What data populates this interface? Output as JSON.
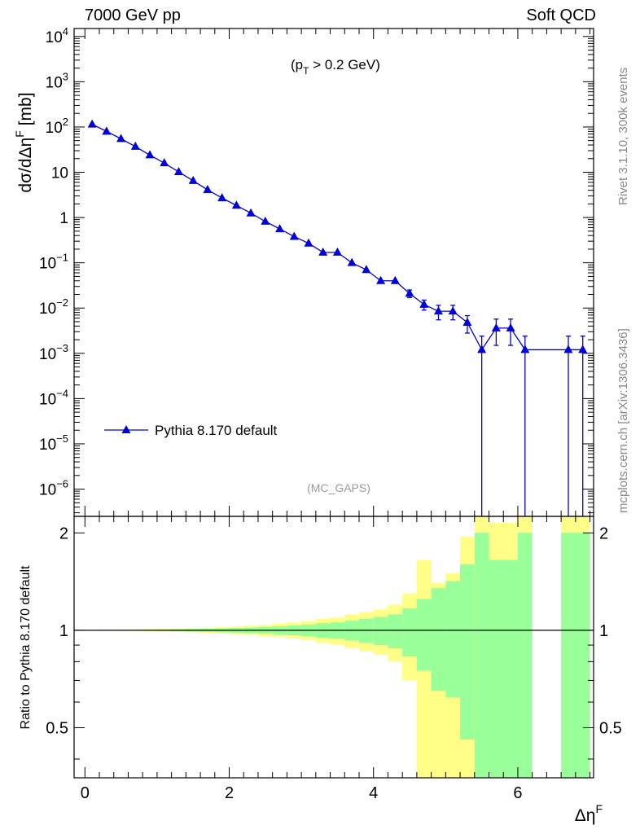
{
  "header": {
    "left": "7000 GeV pp",
    "right": "Soft QCD"
  },
  "side_labels": {
    "top": "Rivet 3.1.10,  300k events",
    "bottom": "mcplots.cern.ch [arXiv:1306.3436]"
  },
  "chart_data": [
    {
      "type": "line",
      "panel": "main",
      "ylabel": "dσ/dΔη^F [mb]",
      "annotation": "(p_T > 0.2 GeV)",
      "analysis_label": "(MC_GAPS)",
      "yscale": "log",
      "ylim": [
        2.5e-07,
        15000
      ],
      "xlim": [
        -0.15,
        7.05
      ],
      "yticks": [
        {
          "v": 10000.0,
          "m": "10",
          "e": "4"
        },
        {
          "v": 1000.0,
          "m": "10",
          "e": "3"
        },
        {
          "v": 100.0,
          "m": "10",
          "e": "2"
        },
        {
          "v": 10,
          "m": "10",
          "e": ""
        },
        {
          "v": 1,
          "m": "1",
          "e": ""
        },
        {
          "v": 0.1,
          "m": "10",
          "e": "−1"
        },
        {
          "v": 0.01,
          "m": "10",
          "e": "−2"
        },
        {
          "v": 0.001,
          "m": "10",
          "e": "−3"
        },
        {
          "v": 0.0001,
          "m": "10",
          "e": "−4"
        },
        {
          "v": 1e-05,
          "m": "10",
          "e": "−5"
        },
        {
          "v": 1e-06,
          "m": "10",
          "e": "−6"
        }
      ],
      "legend": {
        "position": "left-lower",
        "entries": [
          "Pythia 8.170 default"
        ]
      },
      "series": [
        {
          "name": "Pythia 8.170 default",
          "color": "#0000dd",
          "x": [
            0.1,
            0.3,
            0.5,
            0.7,
            0.9,
            1.1,
            1.3,
            1.5,
            1.7,
            1.9,
            2.1,
            2.3,
            2.5,
            2.7,
            2.9,
            3.1,
            3.3,
            3.5,
            3.7,
            3.9,
            4.1,
            4.3,
            4.5,
            4.7,
            4.9,
            5.1,
            5.3,
            5.5,
            5.7,
            5.9,
            6.1,
            6.7,
            6.9
          ],
          "y": [
            115,
            80,
            55,
            37,
            24,
            16,
            10.2,
            6.5,
            4.1,
            2.7,
            1.85,
            1.25,
            0.82,
            0.56,
            0.38,
            0.27,
            0.17,
            0.17,
            0.1,
            0.07,
            0.04,
            0.04,
            0.021,
            0.012,
            0.0085,
            0.0085,
            0.0048,
            0.0012,
            0.0036,
            0.0036,
            0.0012,
            0.0012,
            0.0012
          ],
          "yerr": [
            0,
            0,
            0,
            0,
            0,
            0,
            0,
            0,
            0,
            0,
            0,
            0,
            0,
            0,
            0,
            0,
            0,
            0,
            0,
            0,
            0,
            0,
            0.004,
            0.003,
            0.003,
            0.003,
            0.002,
            0.0012,
            0.0021,
            0.0021,
            0.0012,
            0.0012,
            0.0012
          ]
        }
      ]
    },
    {
      "type": "area",
      "panel": "ratio",
      "ylabel": "Ratio to Pythia 8.170 default",
      "xlabel": "Δη^F",
      "xlim": [
        -0.15,
        7.05
      ],
      "ylim": [
        0.35,
        2.25
      ],
      "yticks": [
        0.5,
        1,
        2
      ],
      "xticks": [
        0,
        2,
        4,
        6
      ],
      "colors": {
        "yellow": "#ffff88",
        "green": "#99ff99",
        "line": "#000000"
      },
      "bins": [
        {
          "x0": 0.0,
          "x1": 0.2,
          "y_lo": 0.998,
          "y_hi": 1.002,
          "g_lo": 0.999,
          "g_hi": 1.001
        },
        {
          "x0": 0.2,
          "x1": 0.4,
          "y_lo": 0.997,
          "y_hi": 1.003,
          "g_lo": 0.998,
          "g_hi": 1.002
        },
        {
          "x0": 0.4,
          "x1": 0.6,
          "y_lo": 0.996,
          "y_hi": 1.004,
          "g_lo": 0.998,
          "g_hi": 1.002
        },
        {
          "x0": 0.6,
          "x1": 0.8,
          "y_lo": 0.995,
          "y_hi": 1.005,
          "g_lo": 0.997,
          "g_hi": 1.003
        },
        {
          "x0": 0.8,
          "x1": 1.0,
          "y_lo": 0.993,
          "y_hi": 1.007,
          "g_lo": 0.996,
          "g_hi": 1.004
        },
        {
          "x0": 1.0,
          "x1": 1.2,
          "y_lo": 0.991,
          "y_hi": 1.009,
          "g_lo": 0.995,
          "g_hi": 1.005
        },
        {
          "x0": 1.2,
          "x1": 1.4,
          "y_lo": 0.988,
          "y_hi": 1.012,
          "g_lo": 0.993,
          "g_hi": 1.007
        },
        {
          "x0": 1.4,
          "x1": 1.6,
          "y_lo": 0.985,
          "y_hi": 1.015,
          "g_lo": 0.991,
          "g_hi": 1.009
        },
        {
          "x0": 1.6,
          "x1": 1.8,
          "y_lo": 0.981,
          "y_hi": 1.019,
          "g_lo": 0.989,
          "g_hi": 1.011
        },
        {
          "x0": 1.8,
          "x1": 2.0,
          "y_lo": 0.977,
          "y_hi": 1.023,
          "g_lo": 0.986,
          "g_hi": 1.014
        },
        {
          "x0": 2.0,
          "x1": 2.2,
          "y_lo": 0.972,
          "y_hi": 1.028,
          "g_lo": 0.983,
          "g_hi": 1.017
        },
        {
          "x0": 2.2,
          "x1": 2.4,
          "y_lo": 0.967,
          "y_hi": 1.033,
          "g_lo": 0.98,
          "g_hi": 1.02
        },
        {
          "x0": 2.4,
          "x1": 2.6,
          "y_lo": 0.96,
          "y_hi": 1.04,
          "g_lo": 0.976,
          "g_hi": 1.024
        },
        {
          "x0": 2.6,
          "x1": 2.8,
          "y_lo": 0.952,
          "y_hi": 1.048,
          "g_lo": 0.971,
          "g_hi": 1.029
        },
        {
          "x0": 2.8,
          "x1": 3.0,
          "y_lo": 0.943,
          "y_hi": 1.057,
          "g_lo": 0.965,
          "g_hi": 1.035
        },
        {
          "x0": 3.0,
          "x1": 3.2,
          "y_lo": 0.932,
          "y_hi": 1.068,
          "g_lo": 0.958,
          "g_hi": 1.042
        },
        {
          "x0": 3.2,
          "x1": 3.4,
          "y_lo": 0.915,
          "y_hi": 1.085,
          "g_lo": 0.948,
          "g_hi": 1.052
        },
        {
          "x0": 3.4,
          "x1": 3.6,
          "y_lo": 0.905,
          "y_hi": 1.095,
          "g_lo": 0.942,
          "g_hi": 1.058
        },
        {
          "x0": 3.6,
          "x1": 3.8,
          "y_lo": 0.88,
          "y_hi": 1.12,
          "g_lo": 0.93,
          "g_hi": 1.07
        },
        {
          "x0": 3.8,
          "x1": 4.0,
          "y_lo": 0.86,
          "y_hi": 1.14,
          "g_lo": 0.915,
          "g_hi": 1.085
        },
        {
          "x0": 4.0,
          "x1": 4.2,
          "y_lo": 0.84,
          "y_hi": 1.16,
          "g_lo": 0.9,
          "g_hi": 1.1
        },
        {
          "x0": 4.2,
          "x1": 4.4,
          "y_lo": 0.8,
          "y_hi": 1.2,
          "g_lo": 0.88,
          "g_hi": 1.12
        },
        {
          "x0": 4.4,
          "x1": 4.6,
          "y_lo": 0.7,
          "y_hi": 1.3,
          "g_lo": 0.83,
          "g_hi": 1.17
        },
        {
          "x0": 4.6,
          "x1": 4.8,
          "y_lo": 0.35,
          "y_hi": 1.65,
          "g_lo": 0.75,
          "g_hi": 1.25
        },
        {
          "x0": 4.8,
          "x1": 5.0,
          "y_lo": 0.35,
          "y_hi": 1.4,
          "g_lo": 0.65,
          "g_hi": 1.35
        },
        {
          "x0": 5.0,
          "x1": 5.2,
          "y_lo": 0.35,
          "y_hi": 1.5,
          "g_lo": 0.62,
          "g_hi": 1.42
        },
        {
          "x0": 5.2,
          "x1": 5.4,
          "y_lo": 0.35,
          "y_hi": 1.95,
          "g_lo": 0.46,
          "g_hi": 1.6
        },
        {
          "x0": 5.4,
          "x1": 5.6,
          "y_lo": 0.35,
          "y_hi": 2.25,
          "g_lo": 0.35,
          "g_hi": 2.0
        },
        {
          "x0": 5.6,
          "x1": 6.0,
          "y_lo": 0.35,
          "y_hi": 2.15,
          "g_lo": 0.35,
          "g_hi": 1.65
        },
        {
          "x0": 6.0,
          "x1": 6.2,
          "y_lo": 0.35,
          "y_hi": 2.25,
          "g_lo": 0.35,
          "g_hi": 2.0
        },
        {
          "x0": 6.6,
          "x1": 7.0,
          "y_lo": 0.35,
          "y_hi": 2.25,
          "g_lo": 0.35,
          "g_hi": 2.0
        }
      ]
    }
  ]
}
